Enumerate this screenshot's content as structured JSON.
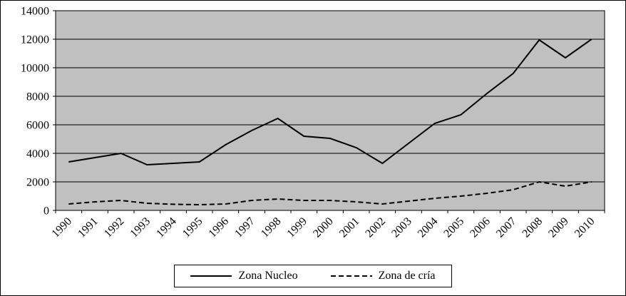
{
  "figure": {
    "background": "#ffffff",
    "border_color": "#000000"
  },
  "chart_data": {
    "type": "line",
    "categories": [
      "1990",
      "1991",
      "1992",
      "1993",
      "1994",
      "1995",
      "1996",
      "1997",
      "1998",
      "1999",
      "2000",
      "2001",
      "2002",
      "2003",
      "2004",
      "2005",
      "2006",
      "2007",
      "2008",
      "2009",
      "2010"
    ],
    "series": [
      {
        "name": "Zona Nucleo",
        "style": "solid",
        "values": [
          3400,
          3700,
          4000,
          3200,
          3300,
          3400,
          4600,
          5600,
          6450,
          5200,
          5050,
          4400,
          3300,
          4700,
          6100,
          6700,
          8200,
          9600,
          11950,
          10700,
          12000
        ]
      },
      {
        "name": "Zona de cría",
        "style": "dashed",
        "values": [
          450,
          600,
          700,
          500,
          430,
          400,
          450,
          700,
          800,
          700,
          700,
          600,
          450,
          650,
          850,
          1000,
          1200,
          1450,
          2000,
          1700,
          2000
        ]
      }
    ],
    "ylim": [
      0,
      14000
    ],
    "ytick_step": 2000,
    "yticks": [
      0,
      2000,
      4000,
      6000,
      8000,
      10000,
      12000,
      14000
    ],
    "grid": true,
    "legend_position": "bottom",
    "colors": {
      "plot_background": "#c0c0c0",
      "line": "#000000",
      "grid": "#000000",
      "axis": "#000000"
    }
  }
}
